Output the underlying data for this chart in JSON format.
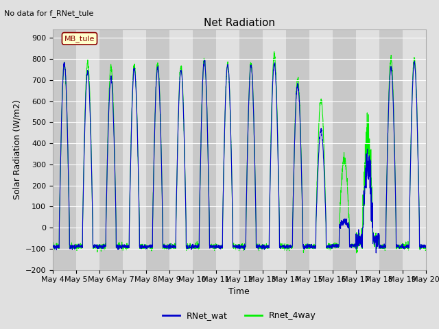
{
  "title": "Net Radiation",
  "xlabel": "Time",
  "ylabel": "Solar Radiation (W/m2)",
  "no_data_text": "No data for f_RNet_tule",
  "station_label": "MB_tule",
  "ylim": [
    -200,
    940
  ],
  "yticks": [
    -200,
    -100,
    0,
    100,
    200,
    300,
    400,
    500,
    600,
    700,
    800,
    900
  ],
  "background_color": "#e0e0e0",
  "plot_bg_color": "#d8d8d8",
  "legend_labels": [
    "RNet_wat",
    "Rnet_4way"
  ],
  "legend_colors": [
    "#0000cc",
    "#00ee00"
  ],
  "num_days": 16,
  "start_day": 4,
  "points_per_day": 144,
  "title_fontsize": 11,
  "axis_fontsize": 9,
  "tick_fontsize": 8,
  "rnet_wat_peaks": [
    780,
    740,
    710,
    755,
    760,
    750,
    795,
    775,
    770,
    775,
    680,
    460,
    30,
    300,
    760,
    780
  ],
  "rnet_4way_peaks": [
    775,
    785,
    760,
    770,
    775,
    765,
    800,
    775,
    775,
    820,
    710,
    605,
    330,
    430,
    800,
    800
  ],
  "night_wat": -90,
  "night_4way": -90,
  "band_colors": [
    "#c8c8c8",
    "#e0e0e0"
  ]
}
